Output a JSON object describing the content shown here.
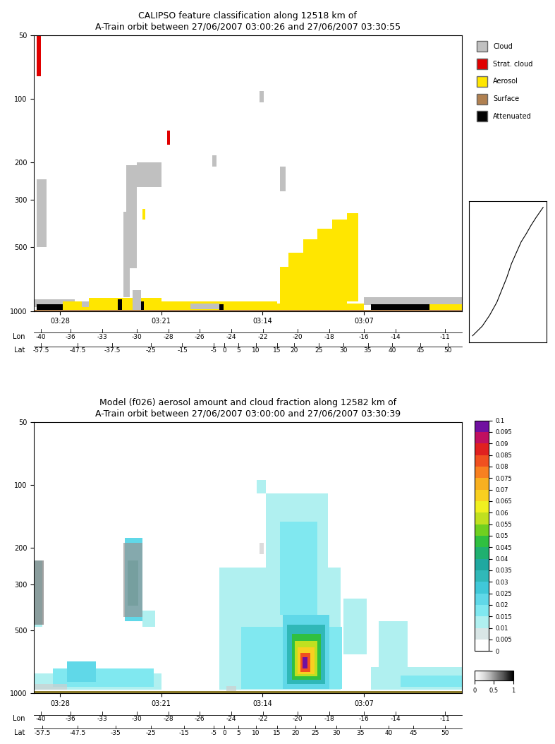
{
  "chart_data": [
    {
      "type": "feature_classification",
      "title": "CALIPSO feature classification along 12518 km of\nA-Train orbit between 27/06/2007 03:00:26 and 27/06/2007 03:30:55",
      "log": "y",
      "xlim": [
        29.8,
        0.25
      ],
      "xticks": [
        {
          "value": 28,
          "label": "03:28"
        },
        {
          "value": 21,
          "label": "03:21"
        },
        {
          "value": 14,
          "label": "03:14"
        },
        {
          "value": 7,
          "label": "03:07"
        }
      ],
      "ylim": [
        1000,
        50
      ],
      "yticks": [
        50,
        100,
        200,
        300,
        500,
        1000
      ],
      "legend": "upper left",
      "lon": {
        "title": "Lon",
        "values": [
          -40,
          -36,
          -33,
          -30,
          -28,
          -26,
          -24,
          -22,
          -20,
          -18,
          -16,
          -14,
          -11
        ],
        "at": [
          29.3,
          27.28,
          25.1,
          22.69,
          20.51,
          18.34,
          16.16,
          13.99,
          11.57,
          9.4,
          6.99,
          4.81,
          1.43
        ]
      },
      "lat": {
        "title": "Lat",
        "values": [
          -57.5,
          -47.5,
          -37.5,
          -25,
          -15,
          -5,
          0,
          5,
          10,
          15,
          20,
          25,
          30,
          35,
          40,
          45,
          50
        ],
        "at": [
          29.3,
          26.79,
          24.38,
          21.72,
          19.55,
          17.37,
          16.65,
          15.68,
          14.47,
          13.02,
          11.82,
          10.13,
          8.43,
          6.74,
          5.05,
          3.12,
          1.19
        ]
      },
      "classes": [
        {
          "name": "Cloud",
          "color": "#c0c0c0"
        },
        {
          "name": "Strat. cloud",
          "color": "#e00000"
        },
        {
          "name": "Aerosol",
          "color": "#ffe600"
        },
        {
          "name": "Surface",
          "color": "#b08050"
        },
        {
          "name": "Attenuated",
          "color": "#000000"
        }
      ],
      "features": [
        {
          "class": "Strat. cloud",
          "x": [
            29.6,
            29.3
          ],
          "p": [
            50,
            78
          ]
        },
        {
          "class": "Cloud",
          "x": [
            29.6,
            28.9
          ],
          "p": [
            240,
            500
          ]
        },
        {
          "class": "Cloud",
          "x": [
            23.4,
            22.7
          ],
          "p": [
            205,
            630
          ]
        },
        {
          "class": "Cloud",
          "x": [
            22.7,
            21.0
          ],
          "p": [
            200,
            260
          ]
        },
        {
          "class": "Cloud",
          "x": [
            23.6,
            23.2
          ],
          "p": [
            340,
            860
          ]
        },
        {
          "class": "Strat. cloud",
          "x": [
            20.6,
            20.4
          ],
          "p": [
            141,
            165
          ]
        },
        {
          "class": "Cloud",
          "x": [
            14.2,
            13.9
          ],
          "p": [
            92,
            104
          ]
        },
        {
          "class": "Cloud",
          "x": [
            17.5,
            17.2
          ],
          "p": [
            185,
            208
          ]
        },
        {
          "class": "Cloud",
          "x": [
            12.8,
            12.4
          ],
          "p": [
            208,
            272
          ]
        },
        {
          "class": "Aerosol",
          "x": [
            22.3,
            22.1
          ],
          "p": [
            330,
            370
          ]
        },
        {
          "class": "Aerosol",
          "x": [
            12.8,
            12.2
          ],
          "p": [
            620,
            920
          ]
        },
        {
          "class": "Aerosol",
          "x": [
            12.2,
            11.2
          ],
          "p": [
            530,
            920
          ]
        },
        {
          "class": "Aerosol",
          "x": [
            11.2,
            10.2
          ],
          "p": [
            460,
            920
          ]
        },
        {
          "class": "Aerosol",
          "x": [
            10.2,
            9.2
          ],
          "p": [
            410,
            920
          ]
        },
        {
          "class": "Aerosol",
          "x": [
            9.2,
            8.2
          ],
          "p": [
            370,
            920
          ]
        },
        {
          "class": "Aerosol",
          "x": [
            8.2,
            7.4
          ],
          "p": [
            345,
            900
          ]
        },
        {
          "class": "Cloud",
          "x": [
            29.8,
            27.0
          ],
          "p": [
            880,
            960
          ]
        },
        {
          "class": "Attenuated",
          "x": [
            29.6,
            27.8
          ],
          "p": [
            930,
            1000
          ]
        },
        {
          "class": "Aerosol",
          "x": [
            27.8,
            26.0
          ],
          "p": [
            900,
            1000
          ]
        },
        {
          "class": "Cloud",
          "x": [
            26.5,
            24.0
          ],
          "p": [
            900,
            960
          ]
        },
        {
          "class": "Aerosol",
          "x": [
            26.0,
            21.0
          ],
          "p": [
            870,
            1000
          ]
        },
        {
          "class": "Attenuated",
          "x": [
            24.0,
            23.7
          ],
          "p": [
            880,
            1000
          ]
        },
        {
          "class": "Cloud",
          "x": [
            23.0,
            22.4
          ],
          "p": [
            800,
            1000
          ]
        },
        {
          "class": "Attenuated",
          "x": [
            22.4,
            22.2
          ],
          "p": [
            900,
            1000
          ]
        },
        {
          "class": "Aerosol",
          "x": [
            21.0,
            13.0
          ],
          "p": [
            900,
            1000
          ]
        },
        {
          "class": "Cloud",
          "x": [
            19.0,
            17.0
          ],
          "p": [
            920,
            980
          ]
        },
        {
          "class": "Attenuated",
          "x": [
            17.0,
            16.7
          ],
          "p": [
            930,
            1000
          ]
        },
        {
          "class": "Aerosol",
          "x": [
            13.0,
            7.0
          ],
          "p": [
            920,
            1000
          ]
        },
        {
          "class": "Cloud",
          "x": [
            7.0,
            0.25
          ],
          "p": [
            860,
            940
          ]
        },
        {
          "class": "Attenuated",
          "x": [
            6.5,
            2.5
          ],
          "p": [
            930,
            1000
          ]
        },
        {
          "class": "Aerosol",
          "x": [
            2.5,
            0.25
          ],
          "p": [
            930,
            1000
          ]
        },
        {
          "class": "Surface",
          "x": [
            29.8,
            0.25
          ],
          "p": [
            990,
            1000
          ]
        }
      ]
    },
    {
      "type": "model_field",
      "title": "Model (f026) aerosol amount and cloud fraction along 12582 km of\nA-Train orbit between 27/06/2007 03:00:00 and 27/06/2007 03:30:39",
      "log": "y",
      "xlim": [
        29.8,
        0.25
      ],
      "xticks": [
        {
          "value": 28,
          "label": "03:28"
        },
        {
          "value": 21,
          "label": "03:21"
        },
        {
          "value": 14,
          "label": "03:14"
        },
        {
          "value": 7,
          "label": "03:07"
        }
      ],
      "ylim": [
        1000,
        50
      ],
      "yticks": [
        50,
        100,
        200,
        300,
        500,
        1000
      ],
      "lon": {
        "title": "Lon",
        "values": [
          -40,
          -36,
          -33,
          -30,
          -28,
          -26,
          -24,
          -22,
          -20,
          -18,
          -16,
          -14,
          -11
        ],
        "at": [
          29.3,
          27.28,
          25.1,
          22.69,
          20.51,
          18.34,
          16.16,
          13.99,
          11.57,
          9.4,
          6.99,
          4.81,
          1.43
        ]
      },
      "lat": {
        "title": "Lat",
        "values": [
          -57.5,
          -47.5,
          -35,
          -25,
          -15,
          -5,
          0,
          5,
          10,
          15,
          20,
          25,
          30,
          35,
          40,
          45,
          50
        ],
        "at": [
          29.21,
          26.79,
          24.14,
          21.72,
          19.45,
          17.37,
          16.65,
          15.68,
          14.47,
          13.02,
          11.72,
          10.37,
          8.92,
          7.23,
          5.29,
          3.6,
          1.43
        ]
      },
      "surface_p": [
        975,
        1000
      ],
      "aerosol": [
        {
          "x": [
            17.0,
            8.6
          ],
          "p": [
            250,
            960
          ],
          "value": 0.01
        },
        {
          "x": [
            14.4,
            13.8
          ],
          "p": [
            95,
            110
          ],
          "value": 0.01
        },
        {
          "x": [
            13.8,
            9.5
          ],
          "p": [
            110,
            250
          ],
          "value": 0.01
        },
        {
          "x": [
            12.8,
            10.2
          ],
          "p": [
            150,
            420
          ],
          "value": 0.015
        },
        {
          "x": [
            15.5,
            8.5
          ],
          "p": [
            480,
            950
          ],
          "value": 0.015
        },
        {
          "x": [
            8.4,
            6.8
          ],
          "p": [
            350,
            650
          ],
          "value": 0.01
        },
        {
          "x": [
            12.6,
            9.4
          ],
          "p": [
            420,
            950
          ],
          "value": 0.02
        },
        {
          "x": [
            12.3,
            9.7
          ],
          "p": [
            470,
            900
          ],
          "value": 0.03
        },
        {
          "x": [
            12.0,
            10.0
          ],
          "p": [
            520,
            860
          ],
          "value": 0.045
        },
        {
          "x": [
            11.8,
            10.2
          ],
          "p": [
            560,
            830
          ],
          "value": 0.055
        },
        {
          "x": [
            11.6,
            10.4
          ],
          "p": [
            600,
            810
          ],
          "value": 0.065
        },
        {
          "x": [
            11.4,
            10.7
          ],
          "p": [
            640,
            790
          ],
          "value": 0.08
        },
        {
          "x": [
            11.25,
            10.9
          ],
          "p": [
            670,
            760
          ],
          "value": 0.096
        },
        {
          "x": [
            29.8,
            21.0
          ],
          "p": [
            800,
            960
          ],
          "value": 0.01
        },
        {
          "x": [
            28.5,
            21.5
          ],
          "p": [
            760,
            930
          ],
          "value": 0.015
        },
        {
          "x": [
            27.5,
            25.5
          ],
          "p": [
            700,
            880
          ],
          "value": 0.02
        },
        {
          "x": [
            29.8,
            29.2
          ],
          "p": [
            230,
            480
          ],
          "value": 0.01
        },
        {
          "x": [
            23.5,
            22.3
          ],
          "p": [
            180,
            450
          ],
          "value": 0.02
        },
        {
          "x": [
            23.3,
            22.6
          ],
          "p": [
            230,
            380
          ],
          "value": 0.03
        },
        {
          "x": [
            22.3,
            21.4
          ],
          "p": [
            400,
            480
          ],
          "value": 0.01
        },
        {
          "x": [
            6.5,
            0.25
          ],
          "p": [
            750,
            960
          ],
          "value": 0.01
        },
        {
          "x": [
            4.5,
            0.25
          ],
          "p": [
            820,
            930
          ],
          "value": 0.015
        },
        {
          "x": [
            6.0,
            4.0
          ],
          "p": [
            450,
            750
          ],
          "value": 0.01
        }
      ],
      "cloud": [
        {
          "x": [
            29.8,
            29.1
          ],
          "p": [
            230,
            470
          ],
          "fraction": 0.6
        },
        {
          "x": [
            23.6,
            22.3
          ],
          "p": [
            190,
            430
          ],
          "fraction": 0.5
        },
        {
          "x": [
            14.2,
            13.9
          ],
          "p": [
            190,
            215
          ],
          "fraction": 0.3
        },
        {
          "x": [
            29.8,
            27.5
          ],
          "p": [
            900,
            960
          ],
          "fraction": 0.3
        },
        {
          "x": [
            16.5,
            15.8
          ],
          "p": [
            920,
            990
          ],
          "fraction": 0.3
        }
      ],
      "colorbar": {
        "range": [
          0,
          0.1
        ],
        "ticks": [
          0,
          0.005,
          0.01,
          0.015,
          0.02,
          0.025,
          0.03,
          0.035,
          0.04,
          0.045,
          0.05,
          0.055,
          0.06,
          0.065,
          0.07,
          0.075,
          0.08,
          0.085,
          0.09,
          0.095,
          0.1
        ]
      },
      "cloud_fraction_bar": {
        "range": [
          0,
          1
        ],
        "ticks": [
          0,
          0.5,
          1
        ]
      }
    }
  ]
}
